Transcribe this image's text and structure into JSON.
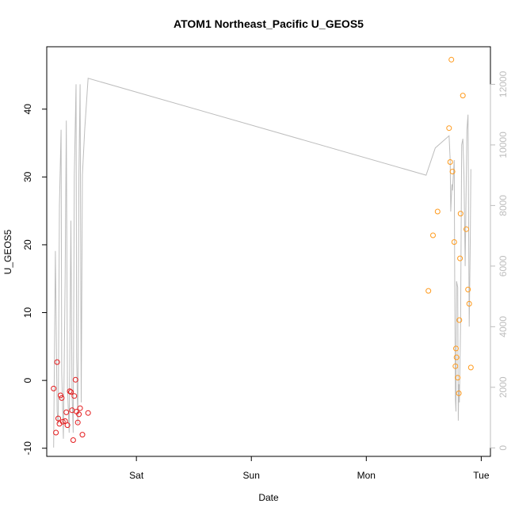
{
  "chart_data": {
    "type": "scatter",
    "title": "ATOM1 Northeast_Pacific U_GEOS5",
    "xlabel": "Date",
    "ylabel": "U_GEOS5",
    "x_axis_kind": "time",
    "x_ticks": [
      {
        "value": 0.78,
        "label": "Sat"
      },
      {
        "value": 1.78,
        "label": "Sun"
      },
      {
        "value": 2.78,
        "label": "Mon"
      },
      {
        "value": 3.78,
        "label": "Tue"
      }
    ],
    "xlim": [
      0.0,
      3.86
    ],
    "ylim": [
      -11.2,
      49.2
    ],
    "y_ticks": [
      -10,
      0,
      10,
      20,
      30,
      40
    ],
    "y2_ticks": [
      0,
      2000,
      4000,
      6000,
      8000,
      10000,
      12000
    ],
    "y2lim": [
      -280,
      13240
    ],
    "grid": false,
    "colors": {
      "series_early": "#e41a1c",
      "series_late": "#ff9a1c",
      "altitude_line": "#bdbdbd",
      "axis": "#000000"
    },
    "series": [
      {
        "color": "#e41a1c",
        "points": [
          [
            0.06,
            -1.2
          ],
          [
            0.08,
            -7.7
          ],
          [
            0.09,
            2.7
          ],
          [
            0.1,
            -5.6
          ],
          [
            0.11,
            -6.4
          ],
          [
            0.12,
            -2.2
          ],
          [
            0.13,
            -2.6
          ],
          [
            0.14,
            -6.1
          ],
          [
            0.16,
            -6.0
          ],
          [
            0.17,
            -4.7
          ],
          [
            0.18,
            -6.6
          ],
          [
            0.2,
            -1.6
          ],
          [
            0.21,
            -1.7
          ],
          [
            0.22,
            -4.4
          ],
          [
            0.23,
            -8.8
          ],
          [
            0.24,
            -2.3
          ],
          [
            0.25,
            0.1
          ],
          [
            0.26,
            -4.6
          ],
          [
            0.27,
            -6.2
          ],
          [
            0.28,
            -5.0
          ],
          [
            0.29,
            -4.1
          ],
          [
            0.31,
            -8.0
          ],
          [
            0.36,
            -4.8
          ]
        ]
      },
      {
        "color": "#ff9a1c",
        "points": [
          [
            3.32,
            13.2
          ],
          [
            3.36,
            21.4
          ],
          [
            3.4,
            24.9
          ],
          [
            3.5,
            37.2
          ],
          [
            3.51,
            32.2
          ],
          [
            3.52,
            47.3
          ],
          [
            3.53,
            30.8
          ],
          [
            3.545,
            20.4
          ],
          [
            3.555,
            2.1
          ],
          [
            3.56,
            4.7
          ],
          [
            3.565,
            3.4
          ],
          [
            3.575,
            0.4
          ],
          [
            3.585,
            -1.9
          ],
          [
            3.59,
            8.9
          ],
          [
            3.595,
            18.0
          ],
          [
            3.6,
            24.6
          ],
          [
            3.62,
            42.0
          ],
          [
            3.65,
            22.3
          ],
          [
            3.665,
            13.4
          ],
          [
            3.675,
            11.3
          ],
          [
            3.69,
            1.9
          ]
        ]
      }
    ],
    "secondary_series": {
      "color": "#bdbdbd",
      "points": [
        [
          0.06,
          10.5
        ],
        [
          0.075,
          6500
        ],
        [
          0.09,
          1200
        ],
        [
          0.1,
          800
        ],
        [
          0.11,
          8000
        ],
        [
          0.125,
          10500
        ],
        [
          0.13,
          2500
        ],
        [
          0.145,
          300
        ],
        [
          0.16,
          5500
        ],
        [
          0.17,
          10800
        ],
        [
          0.18,
          2000
        ],
        [
          0.195,
          500
        ],
        [
          0.21,
          7500
        ],
        [
          0.22,
          1800
        ],
        [
          0.23,
          500
        ],
        [
          0.24,
          9000
        ],
        [
          0.255,
          12000
        ],
        [
          0.26,
          3000
        ],
        [
          0.27,
          800
        ],
        [
          0.28,
          9000
        ],
        [
          0.29,
          12000
        ],
        [
          0.3,
          1500
        ],
        [
          0.31,
          9000
        ],
        [
          0.33,
          10500
        ],
        [
          0.36,
          12200
        ],
        [
          3.3,
          9000
        ],
        [
          3.38,
          9900
        ],
        [
          3.5,
          10300
        ],
        [
          3.51,
          9500
        ],
        [
          3.515,
          7800
        ],
        [
          3.525,
          8700
        ],
        [
          3.53,
          8500
        ],
        [
          3.545,
          9500
        ],
        [
          3.55,
          5000
        ],
        [
          3.555,
          1600
        ],
        [
          3.56,
          1200
        ],
        [
          3.565,
          5500
        ],
        [
          3.575,
          5300
        ],
        [
          3.58,
          900
        ],
        [
          3.585,
          2100
        ],
        [
          3.59,
          1500
        ],
        [
          3.6,
          4000
        ],
        [
          3.61,
          10000
        ],
        [
          3.62,
          10200
        ],
        [
          3.63,
          9000
        ],
        [
          3.64,
          6000
        ],
        [
          3.655,
          10500
        ],
        [
          3.665,
          11000
        ],
        [
          3.675,
          4000
        ],
        [
          3.685,
          7000
        ],
        [
          3.69,
          9200
        ]
      ]
    }
  }
}
